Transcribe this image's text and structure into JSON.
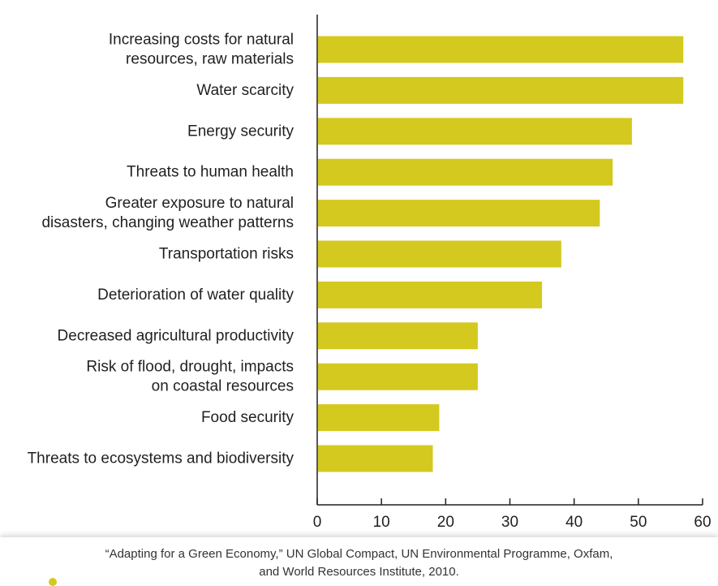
{
  "chart_data": {
    "type": "bar",
    "orientation": "horizontal",
    "categories": [
      [
        "Increasing costs for natural",
        "resources, raw materials"
      ],
      [
        "Water scarcity"
      ],
      [
        "Energy security"
      ],
      [
        "Threats to human health"
      ],
      [
        "Greater exposure to natural",
        "disasters, changing weather patterns"
      ],
      [
        "Transportation risks"
      ],
      [
        "Deterioration of water quality"
      ],
      [
        "Decreased agricultural productivity"
      ],
      [
        "Risk of flood, drought, impacts",
        "on coastal resources"
      ],
      [
        "Food security"
      ],
      [
        "Threats to ecosystems and biodiversity"
      ]
    ],
    "values": [
      57,
      57,
      49,
      46,
      44,
      38,
      35,
      25,
      25,
      19,
      18
    ],
    "xlim": [
      0,
      60
    ],
    "xticks": [
      "0",
      "10",
      "20",
      "30",
      "40",
      "50",
      "60"
    ],
    "grid": false,
    "bar_color": "#d4c91f"
  },
  "source": {
    "line1": "“Adapting for a Green Economy,” UN Global Compact, UN Environmental Programme, Oxfam,",
    "line2": "and World Resources Institute, 2010."
  }
}
